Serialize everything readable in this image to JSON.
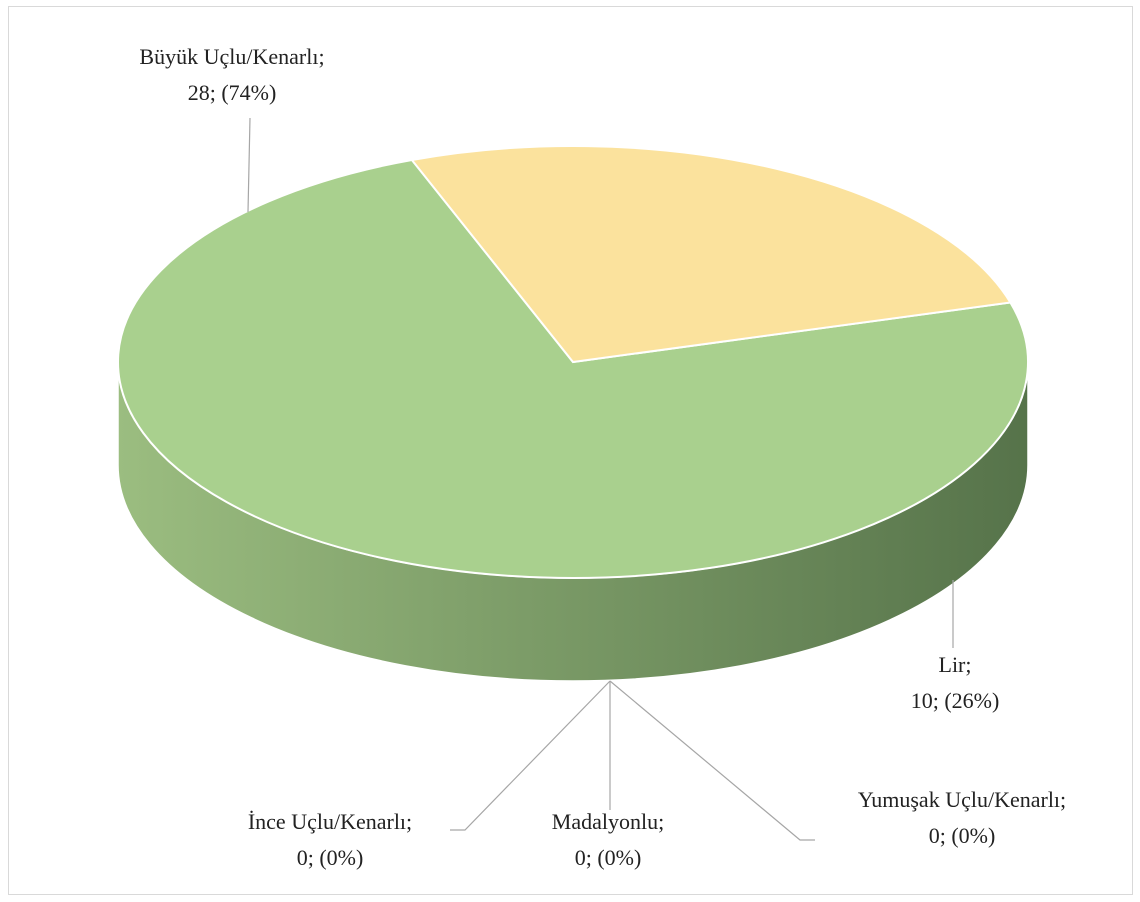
{
  "chart_data": {
    "type": "pie",
    "categories": [
      "Büyük Uçlu/Kenarlı;",
      "Lir;",
      "Yumuşak Uçlu/Kenarlı;",
      "Madalyonlu;",
      "İnce Uçlu/Kenarlı;"
    ],
    "values": [
      28,
      10,
      0,
      0,
      0
    ],
    "value_labels": [
      "28; (74%)",
      "10; (26%)",
      "0; (0%)",
      "0; (0%)",
      "0; (0%)"
    ],
    "colors": [
      "#a9d08e",
      "#fbe29d",
      "#9dc3e6",
      "#f4b183",
      "#c9c9c9"
    ],
    "side_colors": [
      [
        "#9bbd80",
        "#56734a"
      ],
      [
        "#85744b",
        "#625637"
      ],
      [
        "#7f98b3",
        "#5a6e85"
      ],
      [
        "#b88a6a",
        "#8a6548"
      ],
      [
        "#999",
        "#777"
      ]
    ],
    "three_d": true
  }
}
